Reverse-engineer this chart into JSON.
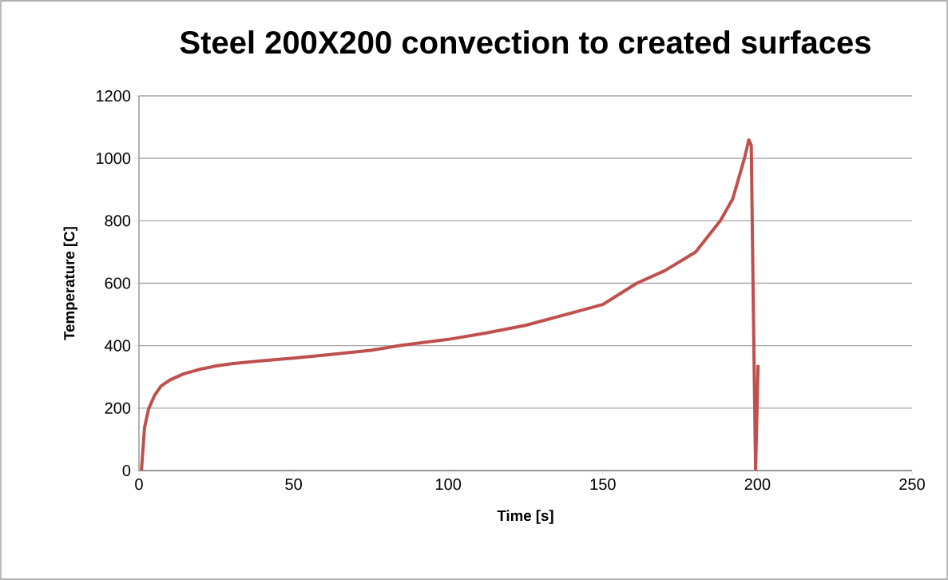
{
  "chart_data": {
    "type": "line",
    "title": "Steel 200X200 convection to created surfaces",
    "xlabel": "Time [s]",
    "ylabel": "Temperature [C]",
    "xlim": [
      0,
      250
    ],
    "xticks": [
      0,
      50,
      100,
      150,
      200,
      250
    ],
    "ylim": [
      0,
      1200
    ],
    "yticks": [
      0,
      200,
      400,
      600,
      800,
      1000,
      1200
    ],
    "grid": "y",
    "marker": "none",
    "line_style": "solid",
    "series": [
      {
        "color": "#c0504d",
        "x": [
          0.8,
          1.8,
          3.1,
          5,
          7.1,
          10,
          14.5,
          20,
          25,
          30,
          40,
          50,
          60,
          75,
          84,
          100,
          112,
          125,
          140,
          150,
          161,
          170,
          180,
          188,
          192,
          195.8,
          197.2,
          198,
          198.7,
          199.4,
          200.2
        ],
        "values": [
          0,
          138,
          197,
          240,
          270,
          290,
          310,
          325,
          335,
          342,
          352,
          360,
          370,
          385,
          400,
          420,
          440,
          465,
          505,
          532,
          600,
          640,
          700,
          800,
          870,
          1000,
          1059,
          1041,
          500,
          0,
          338
        ]
      }
    ]
  }
}
